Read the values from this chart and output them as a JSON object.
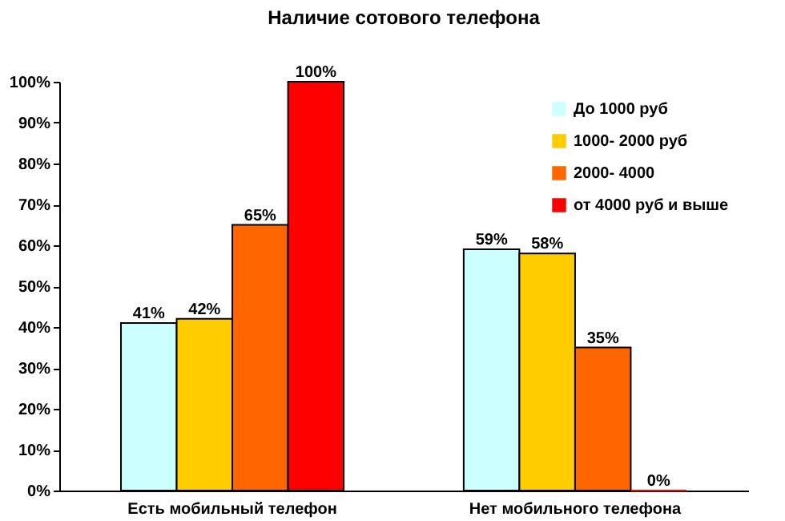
{
  "chart_data": {
    "type": "bar",
    "title": "Наличие сотового телефона",
    "categories": [
      "Есть мобильный телефон",
      "Нет мобильного телефона"
    ],
    "series": [
      {
        "name": "До 1000 руб",
        "color": "#ccffff",
        "values": [
          41,
          59
        ],
        "value_labels": [
          "41%",
          "59%"
        ]
      },
      {
        "name": "1000- 2000 руб",
        "color": "#ffcc00",
        "values": [
          42,
          58
        ],
        "value_labels": [
          "42%",
          "58%"
        ]
      },
      {
        "name": "2000- 4000",
        "color": "#ff6600",
        "values": [
          65,
          35
        ],
        "value_labels": [
          "65%",
          "35%"
        ]
      },
      {
        "name": "от 4000 руб и выше",
        "color": "#ff0000",
        "values": [
          100,
          0
        ],
        "value_labels": [
          "100%",
          "0%"
        ]
      }
    ],
    "ylim": [
      0,
      100
    ],
    "yticks": [
      {
        "value": 0,
        "label": "0%"
      },
      {
        "value": 10,
        "label": "10%"
      },
      {
        "value": 20,
        "label": "20%"
      },
      {
        "value": 30,
        "label": "30%"
      },
      {
        "value": 40,
        "label": "40%"
      },
      {
        "value": 50,
        "label": "50%"
      },
      {
        "value": 60,
        "label": "60%"
      },
      {
        "value": 70,
        "label": "70%"
      },
      {
        "value": 80,
        "label": "80%"
      },
      {
        "value": 90,
        "label": "90%"
      },
      {
        "value": 100,
        "label": "100%"
      }
    ],
    "grid": false,
    "legend": "top right"
  }
}
